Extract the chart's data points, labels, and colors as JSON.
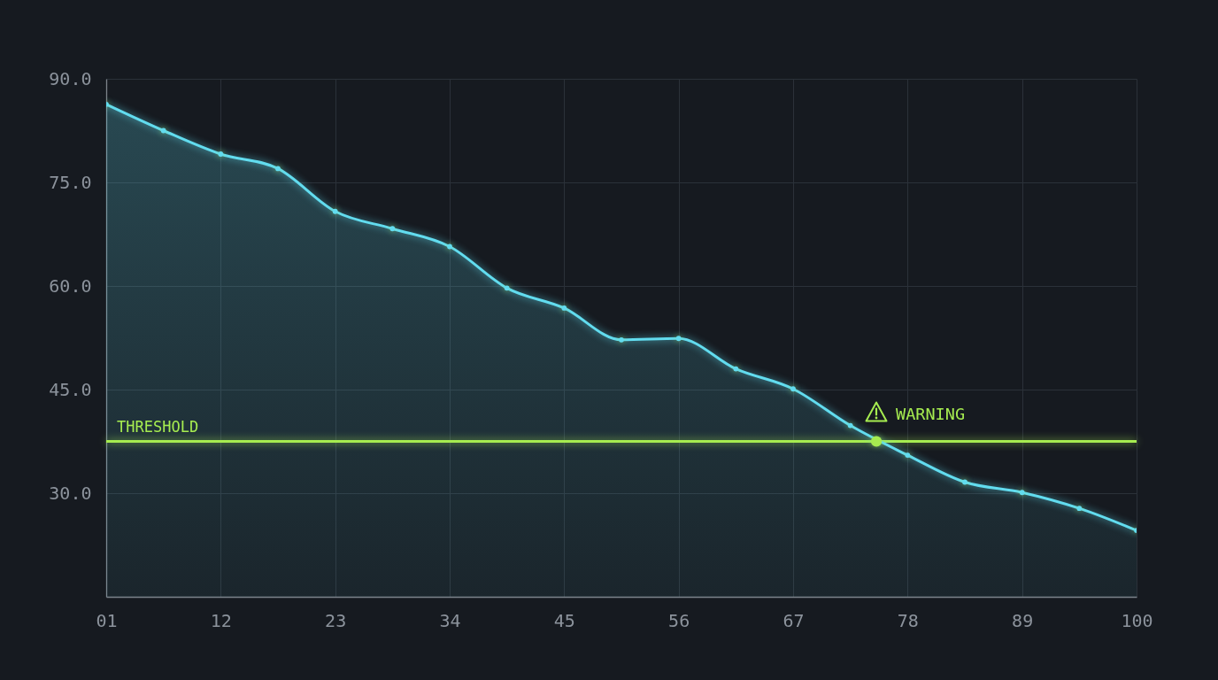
{
  "chart_data": {
    "type": "area",
    "x": [
      1,
      6.5,
      12,
      17.5,
      23,
      28.5,
      34,
      39.5,
      45,
      50.5,
      56,
      61.5,
      67,
      72.5,
      78,
      83.5,
      89,
      94.5,
      100
    ],
    "series": [
      {
        "color": "#62dcef",
        "values": [
          86.3,
          82.5,
          79.1,
          77.0,
          70.8,
          68.3,
          65.7,
          59.7,
          56.8,
          52.2,
          52.4,
          48.0,
          45.1,
          39.8,
          35.5,
          31.6,
          30.1,
          27.8,
          24.6
        ]
      }
    ],
    "xlim": [
      1,
      100
    ],
    "xticks": [
      {
        "value": 1,
        "label": "01"
      },
      12,
      23,
      34,
      45,
      56,
      67,
      78,
      89,
      100
    ],
    "ylim": [
      15,
      90
    ],
    "yticks": [
      {
        "value": 30,
        "label": "30.0"
      },
      {
        "value": 45,
        "label": "45.0"
      },
      {
        "value": 60,
        "label": "60.0"
      },
      {
        "value": 75,
        "label": "75.0"
      },
      {
        "value": 90,
        "label": "90.0"
      }
    ],
    "grid": true,
    "marker": "circle",
    "ref_lines": [
      {
        "axis": "y",
        "value": 37.5,
        "label": "THRESHOLD",
        "color": "#a6ec50"
      }
    ],
    "annotations": [
      {
        "text": "WARNING",
        "x": 75,
        "y": 37.5
      }
    ]
  }
}
